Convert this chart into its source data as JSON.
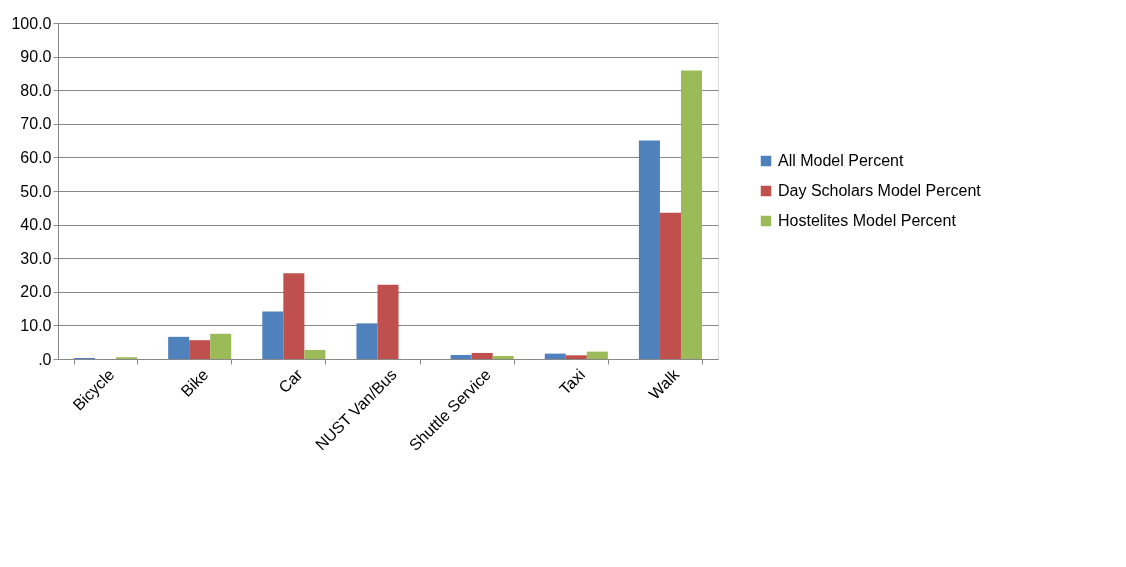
{
  "chart_data": {
    "type": "bar",
    "categories": [
      "Bicycle",
      "Bike",
      "Car",
      "NUST Van/Bus",
      "Shuttle Service",
      "Taxi",
      "Walk"
    ],
    "series": [
      {
        "name": "All Model Percent",
        "color": "#4f81bd",
        "values": [
          0.3,
          6.6,
          14.1,
          10.6,
          1.2,
          1.6,
          65.0
        ]
      },
      {
        "name": "Day Scholars Model Percent",
        "color": "#c0504d",
        "values": [
          null,
          5.6,
          25.5,
          22.1,
          1.8,
          1.1,
          43.5
        ]
      },
      {
        "name": "Hostelites Model Percent",
        "color": "#9bbb59",
        "values": [
          0.5,
          7.5,
          2.7,
          null,
          0.9,
          2.2,
          85.9
        ]
      }
    ],
    "ylim": [
      0,
      100
    ],
    "yticks": [
      {
        "value": 0,
        "label": ".0"
      },
      {
        "value": 10,
        "label": "10.0"
      },
      {
        "value": 20,
        "label": "20.0"
      },
      {
        "value": 30,
        "label": "30.0"
      },
      {
        "value": 40,
        "label": "40.0"
      },
      {
        "value": 50,
        "label": "50.0"
      },
      {
        "value": 60,
        "label": "60.0"
      },
      {
        "value": 70,
        "label": "70.0"
      },
      {
        "value": 80,
        "label": "80.0"
      },
      {
        "value": 90,
        "label": "90.0"
      },
      {
        "value": 100,
        "label": "100.0"
      }
    ],
    "grid": "y",
    "legend": "right"
  }
}
